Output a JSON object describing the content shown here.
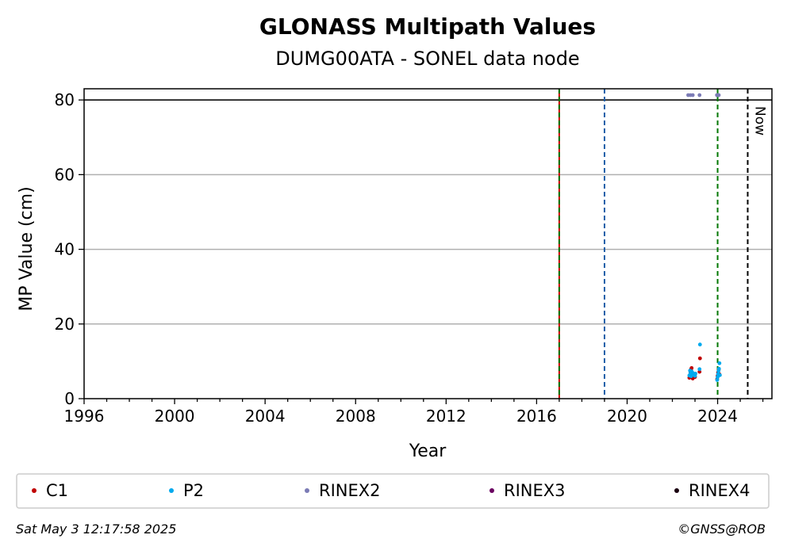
{
  "chart_data": {
    "type": "scatter",
    "title": "GLONASS Multipath Values",
    "subtitle": "DUMG00ATA - SONEL data node",
    "xlabel": "Year",
    "ylabel": "MP Value (cm)",
    "xlim": [
      1996,
      2026.4
    ],
    "ylim": [
      0,
      83
    ],
    "x_ticks": [
      1996,
      2000,
      2004,
      2008,
      2012,
      2016,
      2020,
      2024
    ],
    "y_ticks": [
      0,
      20,
      40,
      60,
      80
    ],
    "grid": "horizontal",
    "threshold_line": 80,
    "vertical_lines": [
      {
        "x": 2017.0,
        "color": "#cc0000",
        "style": "solid"
      },
      {
        "x": 2017.0,
        "color": "#007700",
        "style": "dashed"
      },
      {
        "x": 2019.0,
        "color": "#1f5fa8",
        "style": "dashed"
      },
      {
        "x": 2024.0,
        "color": "#007700",
        "style": "dashed"
      },
      {
        "x": 2025.33,
        "color": "#000000",
        "style": "dashed",
        "label": "Now"
      }
    ],
    "series": [
      {
        "name": "C1",
        "color": "#c00000",
        "points": [
          [
            2022.75,
            5.6
          ],
          [
            2022.78,
            6.3
          ],
          [
            2022.8,
            7.0
          ],
          [
            2022.82,
            7.8
          ],
          [
            2022.85,
            8.2
          ],
          [
            2022.88,
            6.0
          ],
          [
            2022.9,
            5.4
          ],
          [
            2022.95,
            6.6
          ],
          [
            2023.0,
            5.8
          ],
          [
            2023.2,
            7.2
          ],
          [
            2023.22,
            10.8
          ],
          [
            2023.98,
            5.2
          ],
          [
            2024.0,
            6.1
          ],
          [
            2024.02,
            7.0
          ],
          [
            2024.05,
            7.8
          ],
          [
            2024.08,
            6.5
          ]
        ]
      },
      {
        "name": "P2",
        "color": "#00aaee",
        "points": [
          [
            2022.75,
            6.2
          ],
          [
            2022.78,
            7.5
          ],
          [
            2022.8,
            6.8
          ],
          [
            2022.83,
            6.0
          ],
          [
            2022.85,
            7.3
          ],
          [
            2022.88,
            6.5
          ],
          [
            2022.9,
            6.9
          ],
          [
            2022.95,
            6.4
          ],
          [
            2023.0,
            6.1
          ],
          [
            2023.02,
            6.7
          ],
          [
            2023.2,
            7.9
          ],
          [
            2023.22,
            14.5
          ],
          [
            2023.98,
            5.0
          ],
          [
            2024.0,
            5.8
          ],
          [
            2024.02,
            6.6
          ],
          [
            2024.04,
            7.4
          ],
          [
            2024.06,
            8.0
          ],
          [
            2024.08,
            9.5
          ],
          [
            2024.1,
            6.3
          ]
        ]
      },
      {
        "name": "RINEX2",
        "color": "#7b7bb5",
        "points": [
          [
            2022.7,
            81.3
          ],
          [
            2022.8,
            81.3
          ],
          [
            2022.9,
            81.3
          ],
          [
            2023.2,
            81.3
          ],
          [
            2023.97,
            81.3
          ],
          [
            2024.0,
            81.3
          ],
          [
            2024.05,
            81.3
          ]
        ]
      },
      {
        "name": "RINEX3",
        "color": "#6a0060",
        "points": []
      },
      {
        "name": "RINEX4",
        "color": "#1a0010",
        "points": []
      }
    ]
  },
  "footer": {
    "timestamp": "Sat May  3 12:17:58 2025",
    "credit": "©GNSS@ROB"
  }
}
